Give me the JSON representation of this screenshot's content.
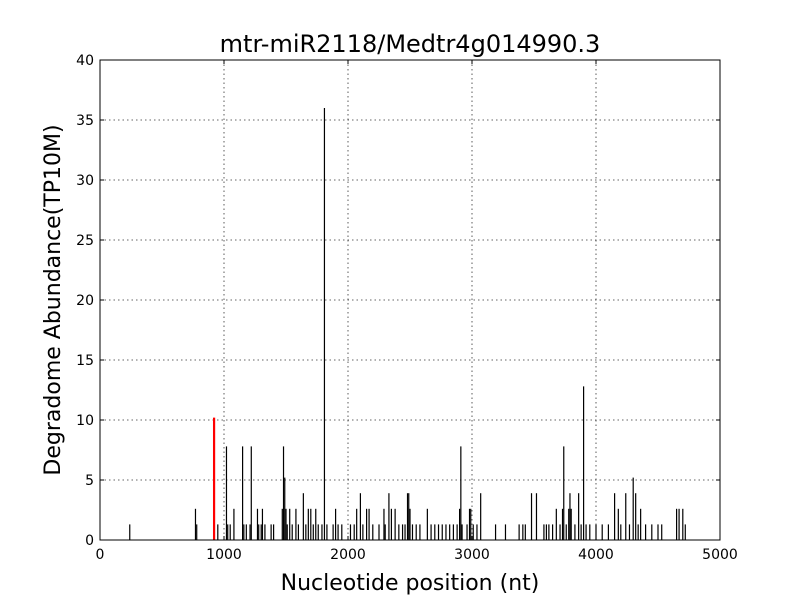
{
  "chart_data": {
    "type": "bar",
    "title": "mtr-miR2118/Medtr4g014990.3",
    "xlabel": "Nucleotide position (nt)",
    "ylabel": "Degradome Abundance(TP10M)",
    "xlim": [
      0,
      5000
    ],
    "ylim": [
      0,
      40
    ],
    "xticks": [
      0,
      1000,
      2000,
      3000,
      4000,
      5000
    ],
    "yticks": [
      0,
      5,
      10,
      15,
      20,
      25,
      30,
      35,
      40
    ],
    "grid": true,
    "colors": {
      "default": "#000000",
      "highlight": "#ff0000"
    },
    "highlight": {
      "x": 920,
      "y": 10.2
    },
    "series": [
      {
        "values": [
          [
            240,
            1.3
          ],
          [
            770,
            2.6
          ],
          [
            780,
            1.3
          ],
          [
            950,
            1.3
          ],
          [
            1020,
            7.8
          ],
          [
            1030,
            1.3
          ],
          [
            1050,
            1.3
          ],
          [
            1080,
            2.6
          ],
          [
            1150,
            7.8
          ],
          [
            1160,
            1.3
          ],
          [
            1180,
            1.3
          ],
          [
            1210,
            1.3
          ],
          [
            1220,
            7.8
          ],
          [
            1270,
            2.6
          ],
          [
            1280,
            1.3
          ],
          [
            1300,
            1.3
          ],
          [
            1310,
            2.6
          ],
          [
            1330,
            1.3
          ],
          [
            1380,
            1.3
          ],
          [
            1400,
            1.3
          ],
          [
            1470,
            2.6
          ],
          [
            1480,
            7.8
          ],
          [
            1490,
            5.2
          ],
          [
            1500,
            2.6
          ],
          [
            1510,
            1.3
          ],
          [
            1530,
            2.6
          ],
          [
            1550,
            1.3
          ],
          [
            1580,
            2.6
          ],
          [
            1600,
            1.3
          ],
          [
            1640,
            3.9
          ],
          [
            1660,
            1.3
          ],
          [
            1680,
            2.6
          ],
          [
            1700,
            2.6
          ],
          [
            1720,
            1.3
          ],
          [
            1740,
            2.6
          ],
          [
            1760,
            1.3
          ],
          [
            1790,
            1.3
          ],
          [
            1810,
            36.0
          ],
          [
            1830,
            1.3
          ],
          [
            1880,
            1.3
          ],
          [
            1900,
            2.6
          ],
          [
            1920,
            1.3
          ],
          [
            1950,
            1.3
          ],
          [
            2020,
            1.3
          ],
          [
            2050,
            1.3
          ],
          [
            2070,
            2.6
          ],
          [
            2100,
            3.9
          ],
          [
            2120,
            1.3
          ],
          [
            2150,
            2.6
          ],
          [
            2170,
            2.6
          ],
          [
            2200,
            1.3
          ],
          [
            2250,
            1.3
          ],
          [
            2290,
            2.6
          ],
          [
            2300,
            1.3
          ],
          [
            2330,
            3.9
          ],
          [
            2350,
            2.6
          ],
          [
            2380,
            2.6
          ],
          [
            2410,
            1.3
          ],
          [
            2440,
            1.3
          ],
          [
            2460,
            1.3
          ],
          [
            2480,
            3.9
          ],
          [
            2490,
            3.9
          ],
          [
            2500,
            2.6
          ],
          [
            2520,
            1.3
          ],
          [
            2550,
            1.3
          ],
          [
            2580,
            1.3
          ],
          [
            2640,
            2.6
          ],
          [
            2670,
            1.3
          ],
          [
            2700,
            1.3
          ],
          [
            2730,
            1.3
          ],
          [
            2760,
            1.3
          ],
          [
            2790,
            1.3
          ],
          [
            2820,
            1.3
          ],
          [
            2850,
            1.3
          ],
          [
            2880,
            1.3
          ],
          [
            2900,
            2.6
          ],
          [
            2910,
            7.8
          ],
          [
            2920,
            1.3
          ],
          [
            2960,
            1.3
          ],
          [
            2980,
            2.6
          ],
          [
            2990,
            2.6
          ],
          [
            3010,
            1.3
          ],
          [
            3040,
            1.3
          ],
          [
            3070,
            3.9
          ],
          [
            3190,
            1.3
          ],
          [
            3270,
            1.3
          ],
          [
            3380,
            1.3
          ],
          [
            3410,
            1.3
          ],
          [
            3430,
            1.3
          ],
          [
            3480,
            3.9
          ],
          [
            3520,
            3.9
          ],
          [
            3580,
            1.3
          ],
          [
            3600,
            1.3
          ],
          [
            3620,
            1.3
          ],
          [
            3650,
            1.3
          ],
          [
            3680,
            2.6
          ],
          [
            3710,
            1.3
          ],
          [
            3730,
            2.6
          ],
          [
            3740,
            7.8
          ],
          [
            3760,
            1.3
          ],
          [
            3780,
            2.6
          ],
          [
            3790,
            3.9
          ],
          [
            3800,
            2.6
          ],
          [
            3830,
            1.3
          ],
          [
            3860,
            3.9
          ],
          [
            3880,
            1.3
          ],
          [
            3900,
            12.8
          ],
          [
            3920,
            1.3
          ],
          [
            3950,
            1.3
          ],
          [
            4000,
            1.3
          ],
          [
            4050,
            1.3
          ],
          [
            4100,
            1.3
          ],
          [
            4150,
            3.9
          ],
          [
            4180,
            2.6
          ],
          [
            4200,
            1.3
          ],
          [
            4240,
            3.9
          ],
          [
            4270,
            1.3
          ],
          [
            4300,
            5.2
          ],
          [
            4320,
            3.9
          ],
          [
            4340,
            1.3
          ],
          [
            4360,
            2.6
          ],
          [
            4400,
            1.3
          ],
          [
            4450,
            1.3
          ],
          [
            4500,
            1.3
          ],
          [
            4530,
            1.3
          ],
          [
            4650,
            2.6
          ],
          [
            4670,
            2.6
          ],
          [
            4700,
            2.6
          ],
          [
            4720,
            1.3
          ]
        ]
      }
    ]
  }
}
